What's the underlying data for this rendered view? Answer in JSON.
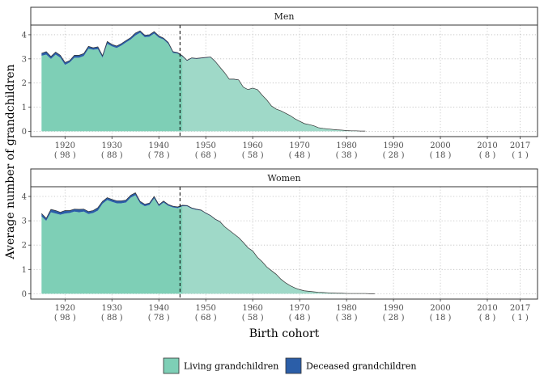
{
  "chart_data": {
    "type": "area",
    "xlabel": "Birth cohort",
    "ylabel": "Average number of grandchildren",
    "xlim": [
      1912.7,
      2020.7
    ],
    "ylim": [
      -0.22,
      4.4
    ],
    "x_ticks": [
      1920,
      1930,
      1940,
      1950,
      1960,
      1970,
      1980,
      1990,
      2000,
      2010,
      2017
    ],
    "x_tick_labels": [
      [
        "1920",
        "( 98 )"
      ],
      [
        "1930",
        "( 88 )"
      ],
      [
        "1940",
        "( 78 )"
      ],
      [
        "1950",
        "( 68 )"
      ],
      [
        "1960",
        "( 58 )"
      ],
      [
        "1970",
        "( 48 )"
      ],
      [
        "1980",
        "( 38 )"
      ],
      [
        "1990",
        "( 28 )"
      ],
      [
        "2000",
        "( 18 )"
      ],
      [
        "2010",
        "( 8 )"
      ],
      [
        "2017",
        "( 1 )"
      ]
    ],
    "y_ticks": [
      0,
      1,
      2,
      3,
      4
    ],
    "vline_x": 1944.5,
    "grid": true,
    "legend_position": "bottom",
    "colors": {
      "living_dark": "#7ecfb6",
      "living_light": "#9fd9c8",
      "deceased": "#2b5ea8",
      "outline": "#333333"
    },
    "legend": [
      {
        "key": "living",
        "label": "Living grandchildren"
      },
      {
        "key": "deceased",
        "label": "Deceased grandchildren"
      }
    ],
    "panels": [
      {
        "label": "Men",
        "x": [
          1915,
          1916,
          1917,
          1918,
          1919,
          1920,
          1921,
          1922,
          1923,
          1924,
          1925,
          1926,
          1927,
          1928,
          1929,
          1930,
          1931,
          1932,
          1933,
          1934,
          1935,
          1936,
          1937,
          1938,
          1939,
          1940,
          1941,
          1942,
          1943,
          1944,
          1945,
          1946,
          1947,
          1948,
          1949,
          1950,
          1951,
          1952,
          1953,
          1954,
          1955,
          1956,
          1957,
          1958,
          1959,
          1960,
          1961,
          1962,
          1963,
          1964,
          1965,
          1966,
          1967,
          1968,
          1969,
          1970,
          1971,
          1972,
          1973,
          1974,
          1975,
          1976,
          1977,
          1978,
          1979,
          1980,
          1981,
          1982,
          1983,
          1984
        ],
        "living": [
          3.13,
          3.18,
          3.0,
          3.18,
          3.05,
          2.75,
          2.85,
          3.05,
          3.05,
          3.12,
          3.42,
          3.38,
          3.4,
          3.05,
          3.62,
          3.52,
          3.45,
          3.55,
          3.68,
          3.8,
          3.97,
          4.08,
          3.9,
          3.92,
          4.05,
          3.88,
          3.8,
          3.62,
          3.25,
          3.22,
          3.1,
          2.92,
          3.02,
          3.0,
          3.02,
          3.04,
          3.06,
          2.88,
          2.65,
          2.42,
          2.15,
          2.15,
          2.12,
          1.82,
          1.72,
          1.78,
          1.72,
          1.5,
          1.3,
          1.05,
          0.92,
          0.85,
          0.75,
          0.65,
          0.52,
          0.42,
          0.32,
          0.28,
          0.23,
          0.15,
          0.12,
          0.1,
          0.08,
          0.06,
          0.05,
          0.03,
          0.02,
          0.02,
          0.01,
          0.01
        ],
        "deceased": [
          0.1,
          0.12,
          0.1,
          0.1,
          0.1,
          0.1,
          0.08,
          0.1,
          0.1,
          0.1,
          0.1,
          0.08,
          0.1,
          0.08,
          0.1,
          0.08,
          0.08,
          0.08,
          0.08,
          0.08,
          0.1,
          0.08,
          0.08,
          0.08,
          0.08,
          0.07,
          0.06,
          0.06,
          0.05,
          0.04,
          0.03,
          0.02,
          0.02,
          0.02,
          0.02,
          0.02,
          0.02,
          0.02,
          0.01,
          0.01,
          0.01,
          0.01,
          0.01,
          0.01,
          0.01,
          0.01,
          0.01,
          0,
          0,
          0,
          0,
          0,
          0,
          0,
          0,
          0,
          0,
          0,
          0,
          0,
          0,
          0,
          0,
          0,
          0,
          0,
          0,
          0,
          0,
          0
        ]
      },
      {
        "label": "Women",
        "x": [
          1915,
          1916,
          1917,
          1918,
          1919,
          1920,
          1921,
          1922,
          1923,
          1924,
          1925,
          1926,
          1927,
          1928,
          1929,
          1930,
          1931,
          1932,
          1933,
          1934,
          1935,
          1936,
          1937,
          1938,
          1939,
          1940,
          1941,
          1942,
          1943,
          1944,
          1945,
          1946,
          1947,
          1948,
          1949,
          1950,
          1951,
          1952,
          1953,
          1954,
          1955,
          1956,
          1957,
          1958,
          1959,
          1960,
          1961,
          1962,
          1963,
          1964,
          1965,
          1966,
          1967,
          1968,
          1969,
          1970,
          1971,
          1972,
          1973,
          1974,
          1975,
          1976,
          1977,
          1978,
          1979,
          1980,
          1981,
          1982,
          1983,
          1984,
          1985,
          1986
        ],
        "living": [
          3.18,
          3.0,
          3.35,
          3.3,
          3.25,
          3.3,
          3.32,
          3.38,
          3.35,
          3.38,
          3.28,
          3.32,
          3.42,
          3.7,
          3.85,
          3.78,
          3.72,
          3.72,
          3.75,
          3.95,
          4.05,
          3.72,
          3.6,
          3.65,
          3.92,
          3.6,
          3.75,
          3.62,
          3.55,
          3.52,
          3.6,
          3.6,
          3.5,
          3.45,
          3.42,
          3.3,
          3.2,
          3.05,
          2.95,
          2.75,
          2.6,
          2.45,
          2.3,
          2.1,
          1.88,
          1.75,
          1.5,
          1.32,
          1.1,
          0.95,
          0.8,
          0.6,
          0.45,
          0.33,
          0.24,
          0.17,
          0.12,
          0.1,
          0.08,
          0.06,
          0.05,
          0.04,
          0.03,
          0.02,
          0.02,
          0.01,
          0.01,
          0.01,
          0.01,
          0.01,
          0,
          0
        ],
        "deceased": [
          0.12,
          0.1,
          0.12,
          0.12,
          0.1,
          0.12,
          0.1,
          0.1,
          0.12,
          0.1,
          0.1,
          0.1,
          0.12,
          0.1,
          0.1,
          0.1,
          0.1,
          0.1,
          0.1,
          0.1,
          0.1,
          0.08,
          0.08,
          0.08,
          0.08,
          0.06,
          0.06,
          0.05,
          0.05,
          0.05,
          0.04,
          0.03,
          0.03,
          0.03,
          0.02,
          0.02,
          0.02,
          0.02,
          0.02,
          0.01,
          0.01,
          0.01,
          0.01,
          0.01,
          0.01,
          0.01,
          0,
          0,
          0,
          0,
          0,
          0,
          0,
          0,
          0,
          0,
          0,
          0,
          0,
          0,
          0,
          0,
          0,
          0,
          0,
          0,
          0,
          0,
          0,
          0,
          0,
          0
        ]
      }
    ]
  }
}
